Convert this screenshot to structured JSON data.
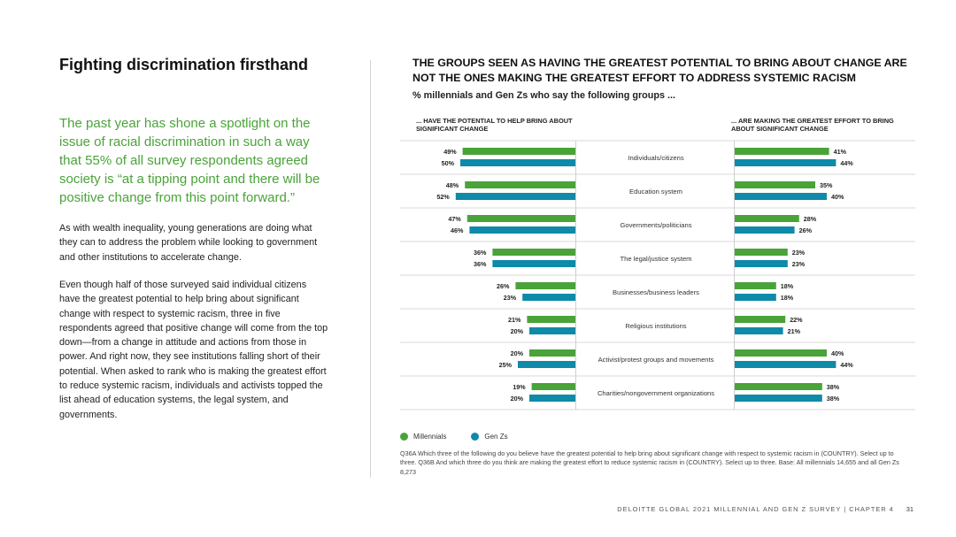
{
  "left": {
    "title": "Fighting discrimination firsthand",
    "lead": "The past year has shone a spotlight on the issue of racial discrimination in such a way that 55% of all survey respondents agreed society is “at a tipping point and there will be positive change from this point forward.”",
    "paragraph1": "As with wealth inequality, young generations are doing what they can to address the problem while looking to government and other institutions to accelerate change.",
    "paragraph2": "Even though half of those surveyed said individual citizens have the greatest potential to help bring about significant change with respect to systemic racism, three in five respondents agreed that positive change will come from the top down—from a change in attitude and actions from those in power. And right now, they see institutions falling short of their potential. When asked to rank who is making the greatest effort to reduce systemic racism, individuals and activists topped the list ahead of education systems, the legal system, and governments."
  },
  "chart_data": {
    "type": "bar",
    "title": "THE GROUPS SEEN AS HAVING THE GREATEST POTENTIAL TO BRING ABOUT CHANGE ARE NOT THE ONES MAKING THE GREATEST EFFORT TO ADDRESS SYSTEMIC RACISM",
    "subtitle": "% millennials and Gen Zs who say the following groups ...",
    "left_header": "... HAVE THE POTENTIAL TO HELP BRING ABOUT SIGNIFICANT CHANGE",
    "right_header": "... ARE MAKING THE GREATEST EFFORT TO BRING ABOUT SIGNIFICANT CHANGE",
    "categories": [
      "Individuals/citizens",
      "Education system",
      "Governments/politicians",
      "The legal/justice system",
      "Businesses/business leaders",
      "Religious institutions",
      "Activist/protest groups and movements",
      "Charities/nongovernment organizations"
    ],
    "potential": {
      "series": [
        {
          "name": "Millennials",
          "values": [
            49,
            48,
            47,
            36,
            26,
            21,
            20,
            19
          ]
        },
        {
          "name": "Gen Zs",
          "values": [
            50,
            52,
            46,
            36,
            23,
            20,
            25,
            20
          ]
        }
      ]
    },
    "effort": {
      "series": [
        {
          "name": "Millennials",
          "values": [
            41,
            35,
            28,
            23,
            18,
            22,
            40,
            38
          ]
        },
        {
          "name": "Gen Zs",
          "values": [
            44,
            40,
            26,
            23,
            18,
            21,
            44,
            38
          ]
        }
      ]
    },
    "unit": "%",
    "colors": {
      "Millennials": "#4aa339",
      "Gen Zs": "#0f8aa8"
    },
    "legend": [
      "Millennials",
      "Gen Zs"
    ],
    "legend_position": "bottom-left"
  },
  "note": "Q36A Which three of the following do you believe have the greatest potential to help bring about significant change with respect to systemic racism in (COUNTRY). Select up to three. Q36B And which three do you think are making the greatest effort to reduce systemic racism in (COUNTRY). Select up to three. Base: All millennials 14,655 and all Gen Zs 8,273",
  "footer": {
    "text": "DELOITTE GLOBAL 2021 MILLENNIAL AND GEN Z SURVEY | CHAPTER 4",
    "page": "31"
  }
}
